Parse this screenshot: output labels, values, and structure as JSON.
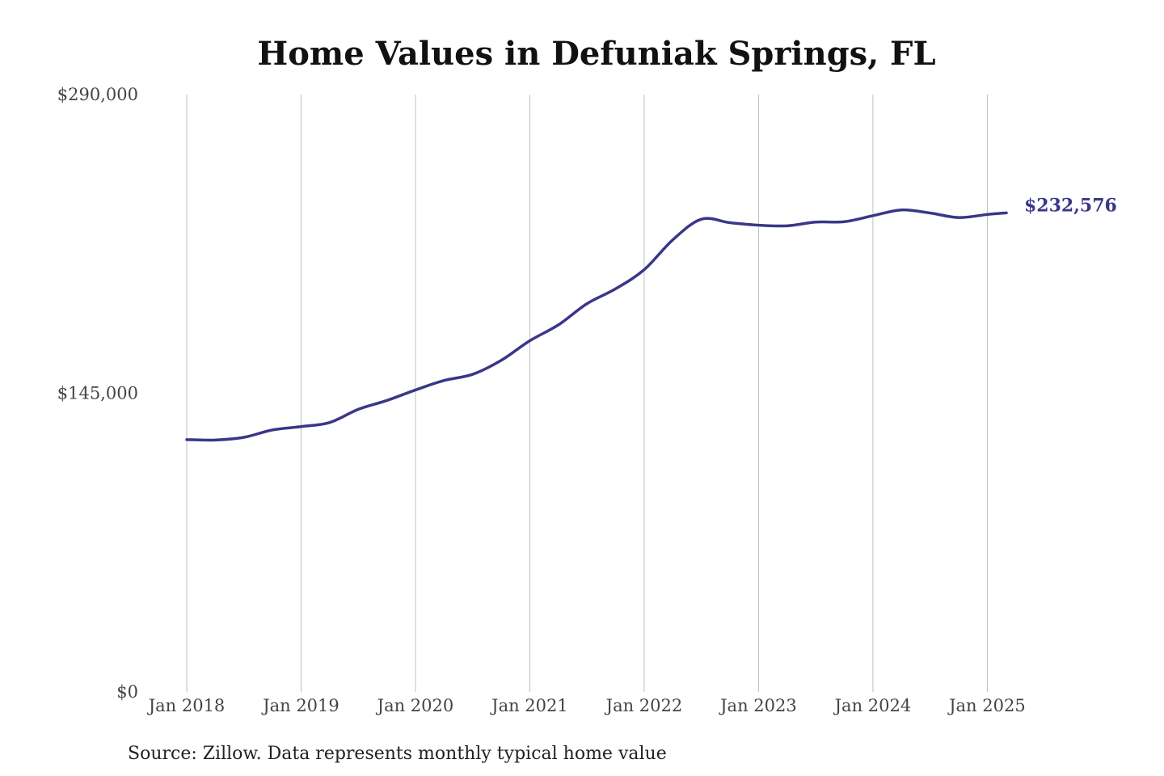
{
  "chart_data": {
    "type": "line",
    "title": "Home Values in Defuniak Springs, FL",
    "subtitle": "",
    "xlabel": "",
    "ylabel": "",
    "ylim": [
      0,
      290000
    ],
    "xlim": [
      "2018-01",
      "2025-03"
    ],
    "y_ticks": [
      {
        "value": 0,
        "label": "$0"
      },
      {
        "value": 145000,
        "label": "$145,000"
      },
      {
        "value": 290000,
        "label": "$290,000"
      }
    ],
    "x_ticks": [
      {
        "value": "2018-01",
        "label": "Jan 2018"
      },
      {
        "value": "2019-01",
        "label": "Jan 2019"
      },
      {
        "value": "2020-01",
        "label": "Jan 2020"
      },
      {
        "value": "2021-01",
        "label": "Jan 2021"
      },
      {
        "value": "2022-01",
        "label": "Jan 2022"
      },
      {
        "value": "2023-01",
        "label": "Jan 2023"
      },
      {
        "value": "2024-01",
        "label": "Jan 2024"
      },
      {
        "value": "2025-01",
        "label": "Jan 2025"
      }
    ],
    "grid": {
      "vertical": true,
      "horizontal": false
    },
    "series": [
      {
        "color": "#3a3788",
        "end_label": "$232,576",
        "points": [
          {
            "x": "2018-01",
            "y": 122500
          },
          {
            "x": "2018-04",
            "y": 122300
          },
          {
            "x": "2018-07",
            "y": 123600
          },
          {
            "x": "2018-10",
            "y": 127200
          },
          {
            "x": "2019-01",
            "y": 128800
          },
          {
            "x": "2019-04",
            "y": 130800
          },
          {
            "x": "2019-07",
            "y": 137200
          },
          {
            "x": "2019-10",
            "y": 141500
          },
          {
            "x": "2020-01",
            "y": 146600
          },
          {
            "x": "2020-04",
            "y": 151200
          },
          {
            "x": "2020-07",
            "y": 154200
          },
          {
            "x": "2020-10",
            "y": 161000
          },
          {
            "x": "2021-01",
            "y": 170500
          },
          {
            "x": "2021-04",
            "y": 178200
          },
          {
            "x": "2021-07",
            "y": 188500
          },
          {
            "x": "2021-10",
            "y": 195700
          },
          {
            "x": "2022-01",
            "y": 205000
          },
          {
            "x": "2022-04",
            "y": 219500
          },
          {
            "x": "2022-07",
            "y": 229500
          },
          {
            "x": "2022-10",
            "y": 227800
          },
          {
            "x": "2023-01",
            "y": 226600
          },
          {
            "x": "2023-04",
            "y": 226300
          },
          {
            "x": "2023-07",
            "y": 228100
          },
          {
            "x": "2023-10",
            "y": 228300
          },
          {
            "x": "2024-01",
            "y": 231200
          },
          {
            "x": "2024-04",
            "y": 234000
          },
          {
            "x": "2024-07",
            "y": 232500
          },
          {
            "x": "2024-10",
            "y": 230300
          },
          {
            "x": "2025-01",
            "y": 231800
          },
          {
            "x": "2025-03",
            "y": 232576
          }
        ]
      }
    ],
    "source": "Source: Zillow. Data represents monthly typical home value"
  }
}
